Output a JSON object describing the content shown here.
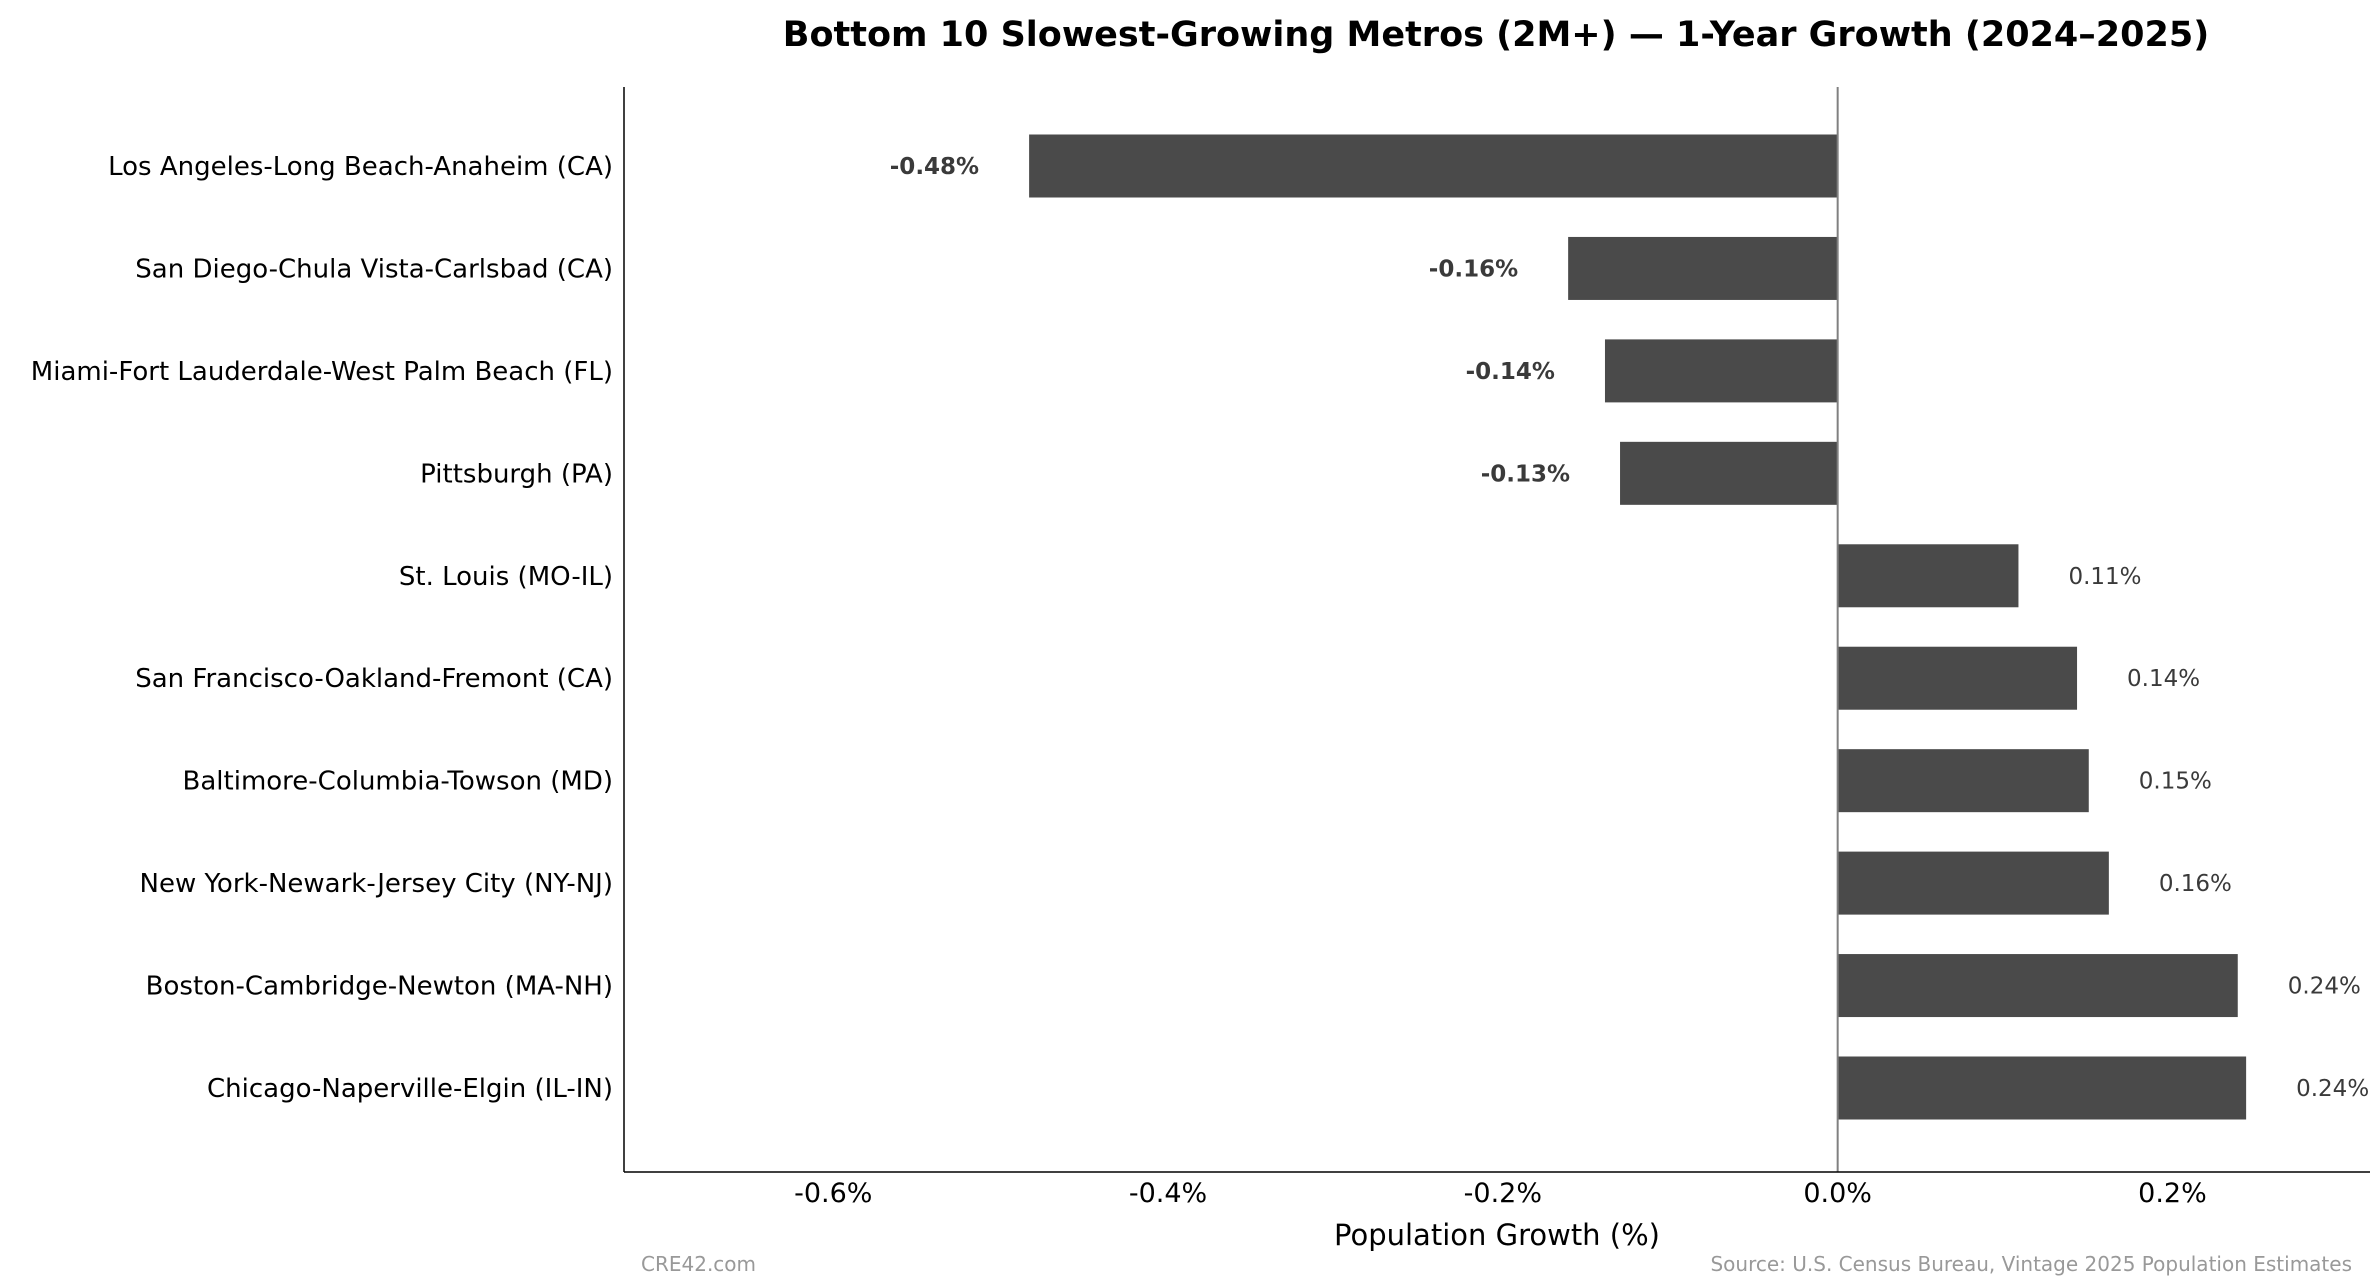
{
  "chart_data": {
    "type": "bar",
    "orientation": "horizontal",
    "title": "Bottom 10 Slowest-Growing Metros (2M+) — 1-Year Growth (2024–2025)",
    "xlabel": "Population Growth (%)",
    "ylabel": "",
    "xlim": [
      -0.725,
      0.318
    ],
    "xticks": [
      -0.6,
      -0.4,
      -0.2,
      0.0,
      0.2
    ],
    "xtick_labels": [
      "-0.6%",
      "-0.4%",
      "-0.2%",
      "0.0%",
      "0.2%"
    ],
    "grid": false,
    "bar_color": "#4a4a4a",
    "categories": [
      "Los Angeles-Long Beach-Anaheim (CA)",
      "San Diego-Chula Vista-Carlsbad (CA)",
      "Miami-Fort Lauderdale-West Palm Beach (FL)",
      "Pittsburgh (PA)",
      "St. Louis (MO-IL)",
      "San Francisco-Oakland-Fremont (CA)",
      "Baltimore-Columbia-Towson (MD)",
      "New York-Newark-Jersey City (NY-NJ)",
      "Boston-Cambridge-Newton (MA-NH)",
      "Chicago-Naperville-Elgin (IL-IN)"
    ],
    "values": [
      -0.483,
      -0.161,
      -0.139,
      -0.13,
      0.108,
      0.143,
      0.15,
      0.162,
      0.239,
      0.244
    ],
    "data_labels": [
      "-0.48%",
      "-0.16%",
      "-0.14%",
      "-0.13%",
      "0.11%",
      "0.14%",
      "0.15%",
      "0.16%",
      "0.24%",
      "0.24%"
    ]
  },
  "footer": {
    "left": "CRE42.com",
    "right": "Source: U.S. Census Bureau, Vintage 2025 Population Estimates"
  }
}
